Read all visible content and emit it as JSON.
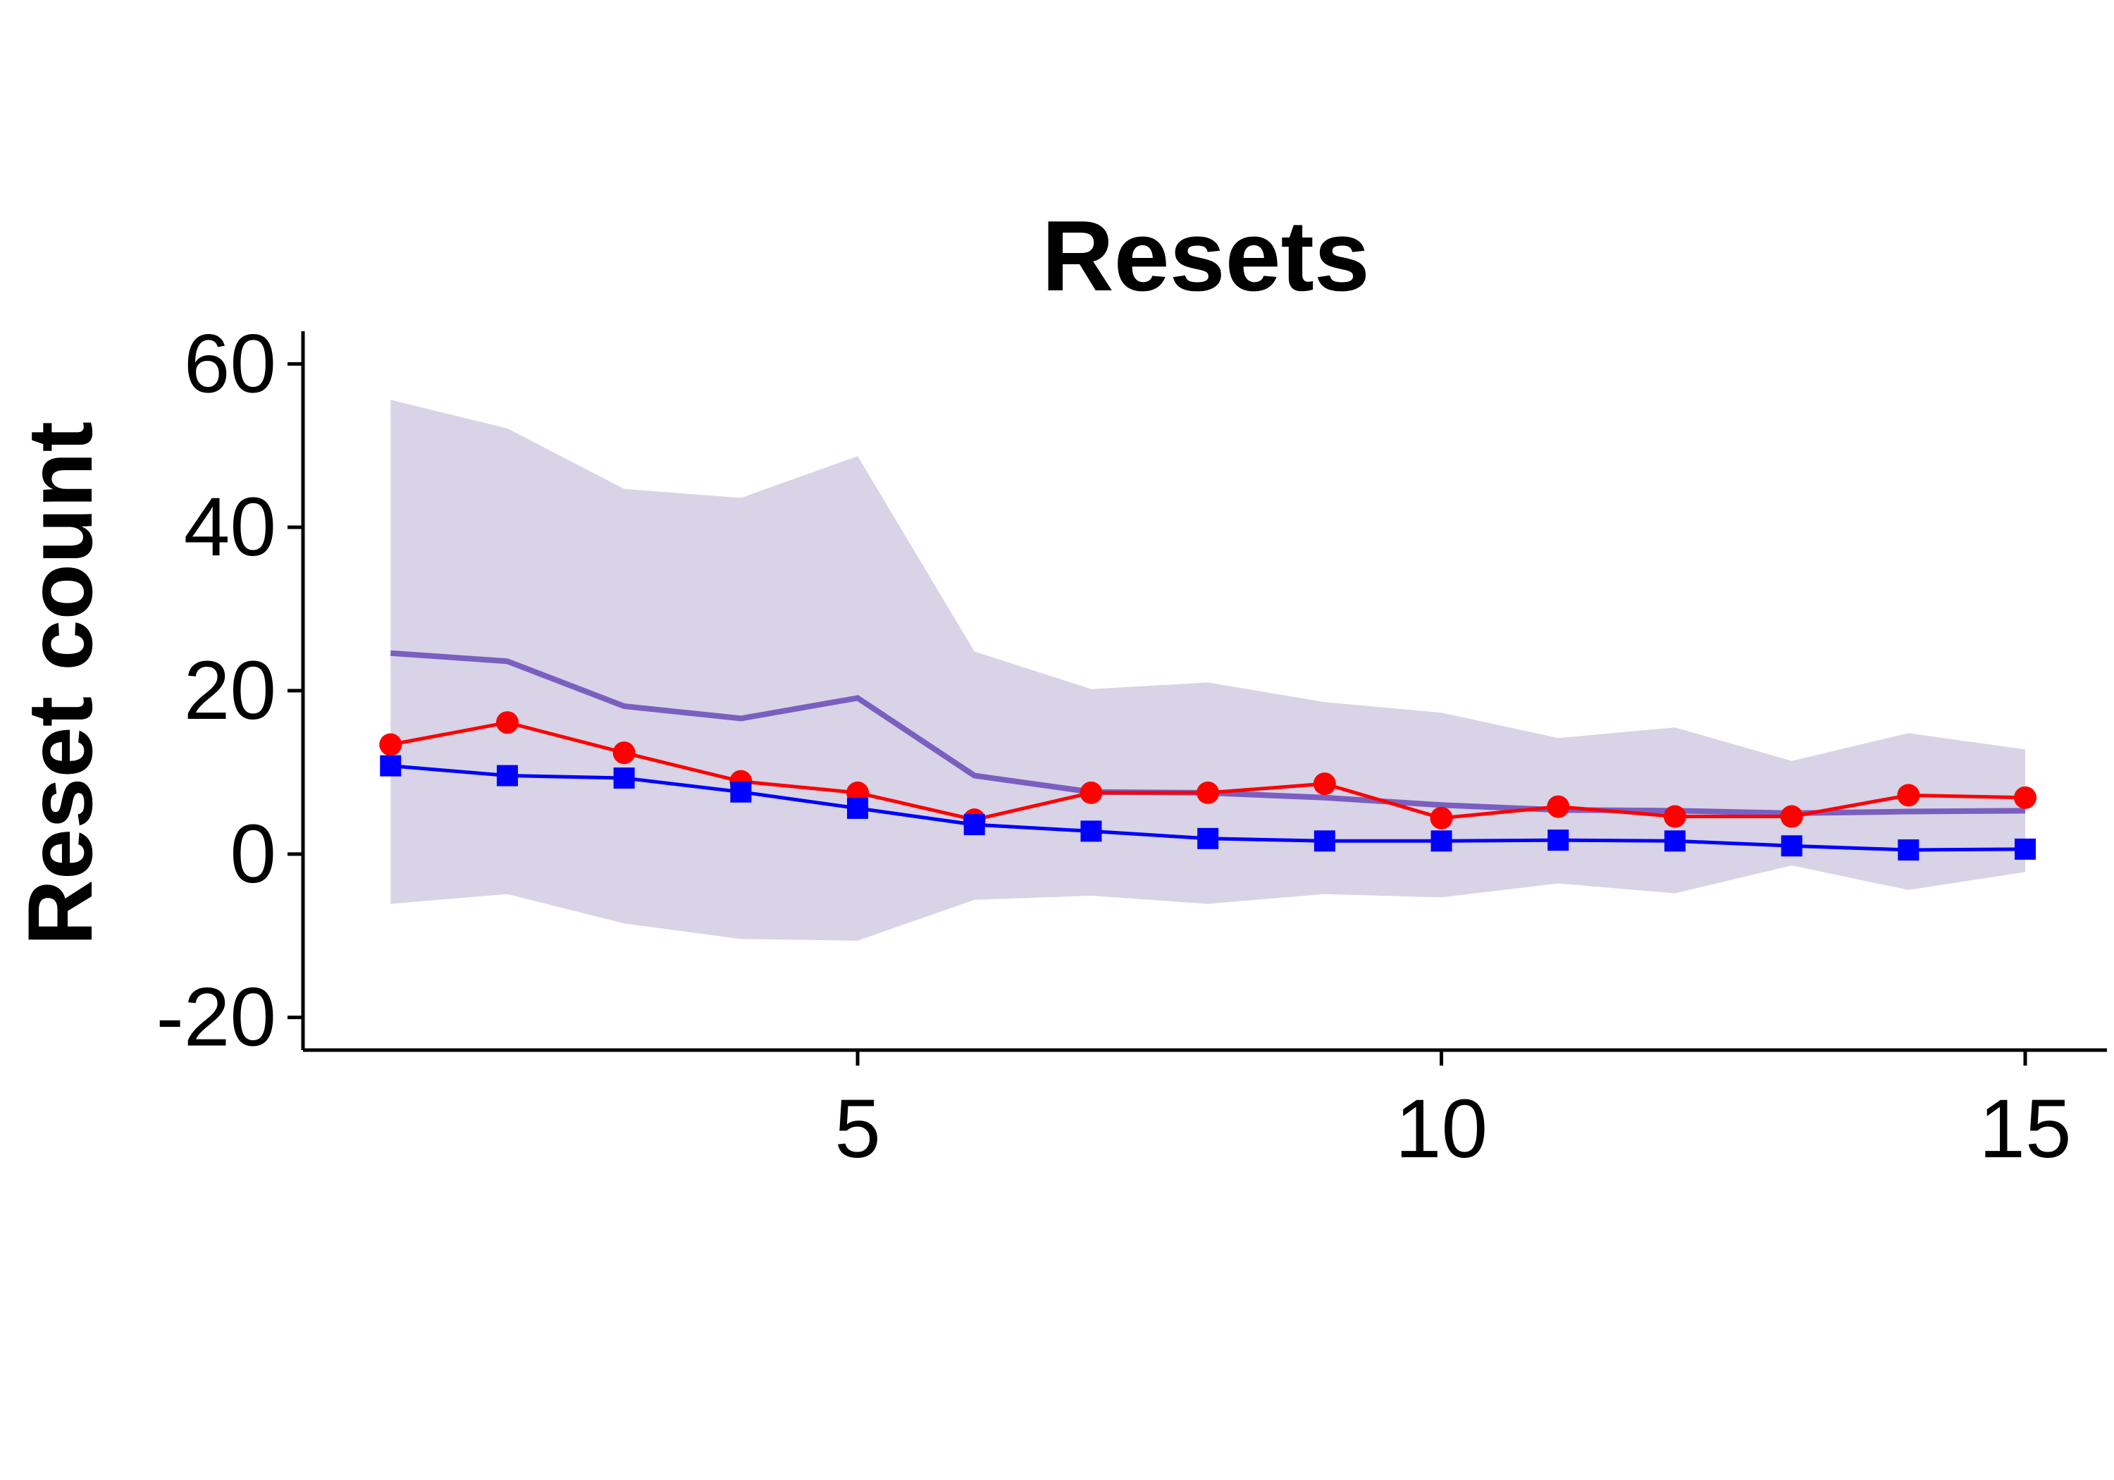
{
  "chart_data": {
    "type": "line",
    "title": "Resets",
    "xlabel": "",
    "ylabel": "Reset count",
    "xlim": [
      0.25,
      15.7
    ],
    "ylim": [
      -24,
      64
    ],
    "xticks": [
      5,
      10,
      15
    ],
    "yticks": [
      -20,
      0,
      20,
      40,
      60
    ],
    "grid": false,
    "x": [
      1,
      2,
      3,
      4,
      5,
      6,
      7,
      8,
      9,
      10,
      11,
      12,
      13,
      14,
      15
    ],
    "band": {
      "color": "#d8d3e6",
      "upper": [
        55.6,
        52.1,
        44.7,
        43.6,
        48.7,
        24.8,
        20.2,
        21.0,
        18.6,
        17.3,
        14.2,
        15.5,
        11.4,
        14.8,
        12.8
      ],
      "lower": [
        -6.1,
        -4.9,
        -8.5,
        -10.4,
        -10.6,
        -5.6,
        -5.1,
        -6.1,
        -4.9,
        -5.3,
        -3.6,
        -4.8,
        -1.4,
        -4.4,
        -2.2
      ]
    },
    "series": [
      {
        "color": "#7a5fc0",
        "marker": "none",
        "values": [
          24.6,
          23.6,
          18.1,
          16.6,
          19.1,
          9.6,
          7.6,
          7.5,
          6.9,
          6.0,
          5.4,
          5.3,
          5.0,
          5.2,
          5.3
        ]
      },
      {
        "color": "#ff0000",
        "marker": "circle",
        "values": [
          13.4,
          16.1,
          12.4,
          8.9,
          7.5,
          4.2,
          7.5,
          7.5,
          8.6,
          4.4,
          5.8,
          4.6,
          4.6,
          7.2,
          6.9
        ]
      },
      {
        "color": "#0000ff",
        "marker": "square",
        "values": [
          10.8,
          9.6,
          9.3,
          7.6,
          5.6,
          3.6,
          2.8,
          1.9,
          1.6,
          1.6,
          1.7,
          1.6,
          1.0,
          0.5,
          0.6
        ]
      }
    ]
  }
}
